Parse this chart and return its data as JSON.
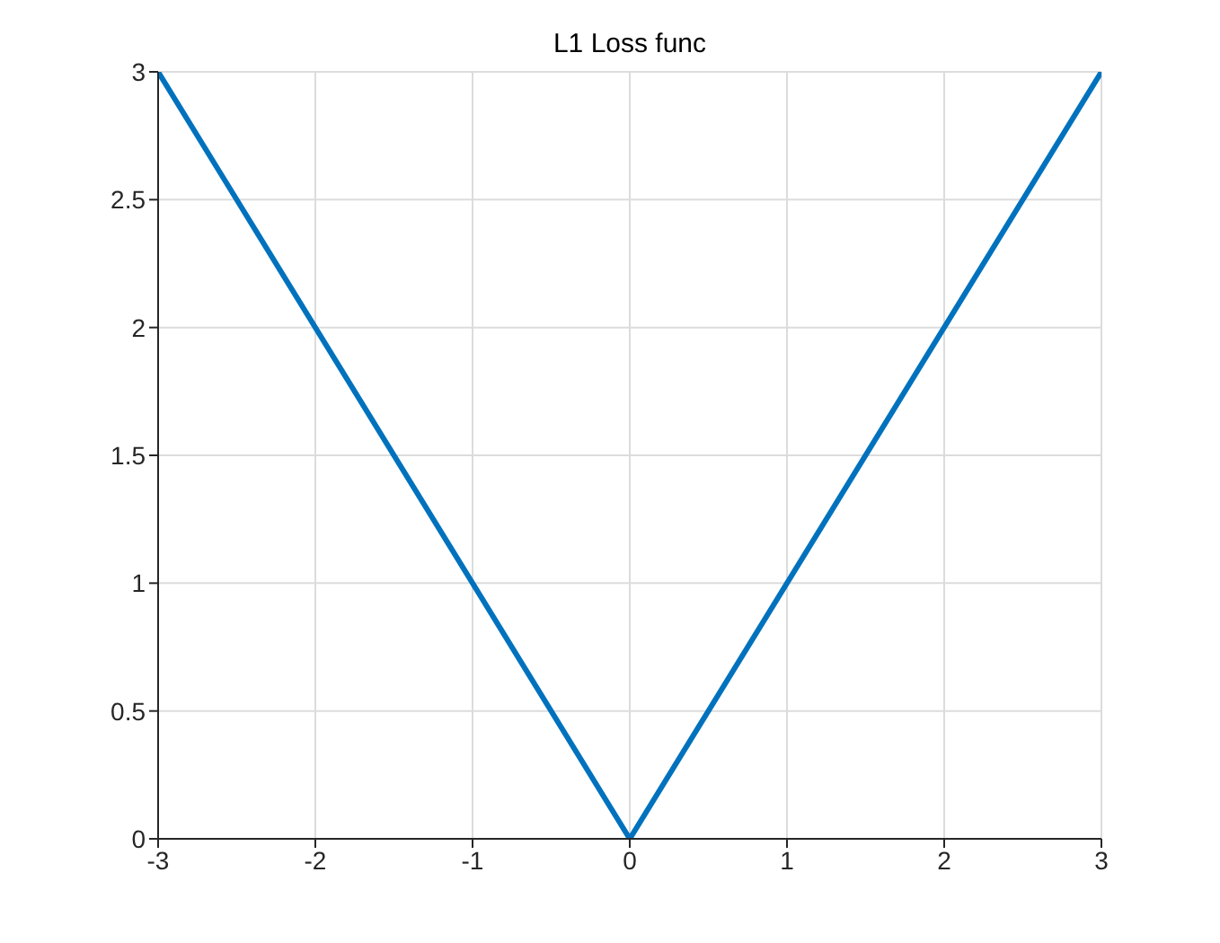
{
  "chart_data": {
    "type": "line",
    "title": "L1 Loss func",
    "x": [
      -3,
      0,
      3
    ],
    "series": [
      {
        "color": "#0072bd",
        "values": [
          3,
          0,
          3
        ]
      }
    ],
    "xlim": [
      -3,
      3
    ],
    "xticks": [
      -3,
      -2,
      -1,
      0,
      1,
      2,
      3
    ],
    "ylim": [
      0,
      3
    ],
    "yticks": [
      0,
      0.5,
      1,
      1.5,
      2,
      2.5,
      3
    ],
    "grid": true,
    "marker": "none",
    "line_style": "solid"
  }
}
